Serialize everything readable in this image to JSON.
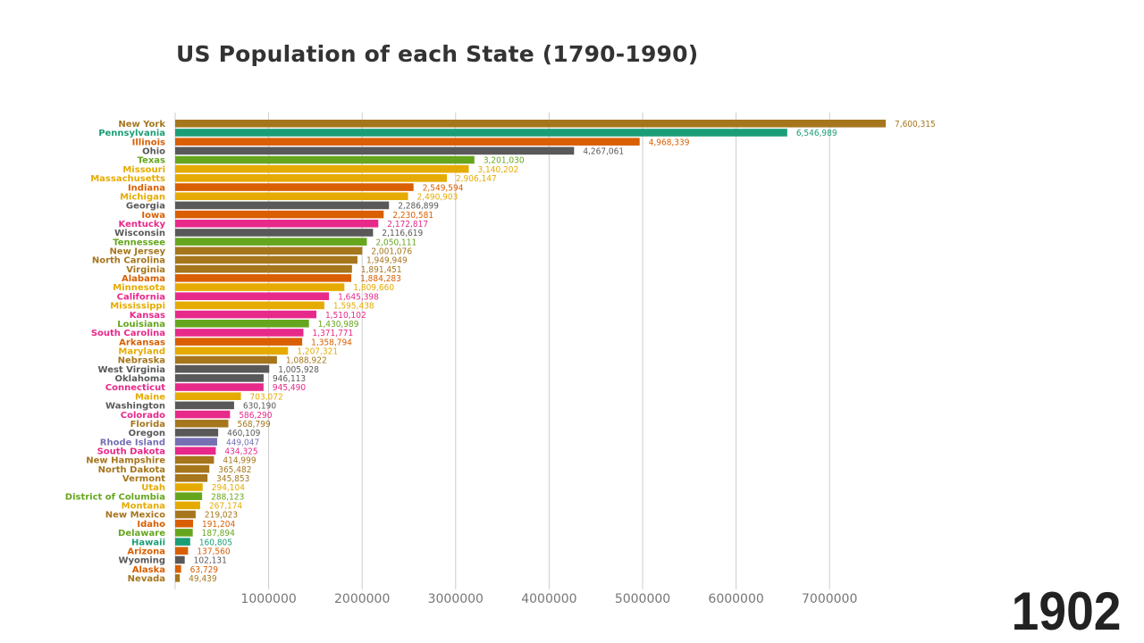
{
  "chart_data": {
    "type": "bar",
    "orientation": "horizontal",
    "title": "US Population of each State (1790-1990)",
    "year": "1902",
    "xlim": [
      0,
      8000000
    ],
    "xticks": [
      1000000,
      2000000,
      3000000,
      4000000,
      5000000,
      6000000,
      7000000
    ],
    "grid": true,
    "bars": [
      {
        "name": "New York",
        "value": 7600315,
        "color": "#a6761d"
      },
      {
        "name": "Pennsylvania",
        "value": 6546989,
        "color": "#1b9e77"
      },
      {
        "name": "Illinois",
        "value": 4968339,
        "color": "#d95f02"
      },
      {
        "name": "Ohio",
        "value": 4267061,
        "color": "#595959"
      },
      {
        "name": "Texas",
        "value": 3201030,
        "color": "#66a61e"
      },
      {
        "name": "Missouri",
        "value": 3140202,
        "color": "#e6ab02"
      },
      {
        "name": "Massachusetts",
        "value": 2906147,
        "color": "#e6ab02"
      },
      {
        "name": "Indiana",
        "value": 2549594,
        "color": "#d95f02"
      },
      {
        "name": "Michigan",
        "value": 2490903,
        "color": "#e6ab02"
      },
      {
        "name": "Georgia",
        "value": 2286899,
        "color": "#595959"
      },
      {
        "name": "Iowa",
        "value": 2230581,
        "color": "#d95f02"
      },
      {
        "name": "Kentucky",
        "value": 2172817,
        "color": "#e7298a"
      },
      {
        "name": "Wisconsin",
        "value": 2116619,
        "color": "#595959"
      },
      {
        "name": "Tennessee",
        "value": 2050111,
        "color": "#66a61e"
      },
      {
        "name": "New Jersey",
        "value": 2001076,
        "color": "#a6761d"
      },
      {
        "name": "North Carolina",
        "value": 1949949,
        "color": "#a6761d"
      },
      {
        "name": "Virginia",
        "value": 1891451,
        "color": "#a6761d"
      },
      {
        "name": "Alabama",
        "value": 1884283,
        "color": "#d95f02"
      },
      {
        "name": "Minnesota",
        "value": 1809660,
        "color": "#e6ab02"
      },
      {
        "name": "California",
        "value": 1645398,
        "color": "#e7298a"
      },
      {
        "name": "Mississippi",
        "value": 1595438,
        "color": "#e6ab02"
      },
      {
        "name": "Kansas",
        "value": 1510102,
        "color": "#e7298a"
      },
      {
        "name": "Louisiana",
        "value": 1430989,
        "color": "#66a61e"
      },
      {
        "name": "South Carolina",
        "value": 1371771,
        "color": "#e7298a"
      },
      {
        "name": "Arkansas",
        "value": 1358794,
        "color": "#d95f02"
      },
      {
        "name": "Maryland",
        "value": 1207321,
        "color": "#e6ab02"
      },
      {
        "name": "Nebraska",
        "value": 1088922,
        "color": "#a6761d"
      },
      {
        "name": "West Virginia",
        "value": 1005928,
        "color": "#595959"
      },
      {
        "name": "Oklahoma",
        "value": 946113,
        "color": "#595959"
      },
      {
        "name": "Connecticut",
        "value": 945490,
        "color": "#e7298a"
      },
      {
        "name": "Maine",
        "value": 703072,
        "color": "#e6ab02"
      },
      {
        "name": "Washington",
        "value": 630190,
        "color": "#595959"
      },
      {
        "name": "Colorado",
        "value": 586290,
        "color": "#e7298a"
      },
      {
        "name": "Florida",
        "value": 568799,
        "color": "#a6761d"
      },
      {
        "name": "Oregon",
        "value": 460109,
        "color": "#595959"
      },
      {
        "name": "Rhode Island",
        "value": 449047,
        "color": "#7570b3"
      },
      {
        "name": "South Dakota",
        "value": 434325,
        "color": "#e7298a"
      },
      {
        "name": "New Hampshire",
        "value": 414999,
        "color": "#a6761d"
      },
      {
        "name": "North Dakota",
        "value": 365482,
        "color": "#a6761d"
      },
      {
        "name": "Vermont",
        "value": 345853,
        "color": "#a6761d"
      },
      {
        "name": "Utah",
        "value": 294104,
        "color": "#e6ab02"
      },
      {
        "name": "District of Columbia",
        "value": 288123,
        "color": "#66a61e"
      },
      {
        "name": "Montana",
        "value": 267174,
        "color": "#e6ab02"
      },
      {
        "name": "New Mexico",
        "value": 219023,
        "color": "#a6761d"
      },
      {
        "name": "Idaho",
        "value": 191204,
        "color": "#d95f02"
      },
      {
        "name": "Delaware",
        "value": 187894,
        "color": "#66a61e"
      },
      {
        "name": "Hawaii",
        "value": 160805,
        "color": "#1b9e77"
      },
      {
        "name": "Arizona",
        "value": 137560,
        "color": "#d95f02"
      },
      {
        "name": "Wyoming",
        "value": 102131,
        "color": "#595959"
      },
      {
        "name": "Alaska",
        "value": 63729,
        "color": "#d95f02"
      },
      {
        "name": "Nevada",
        "value": 49439,
        "color": "#a6761d"
      }
    ]
  }
}
